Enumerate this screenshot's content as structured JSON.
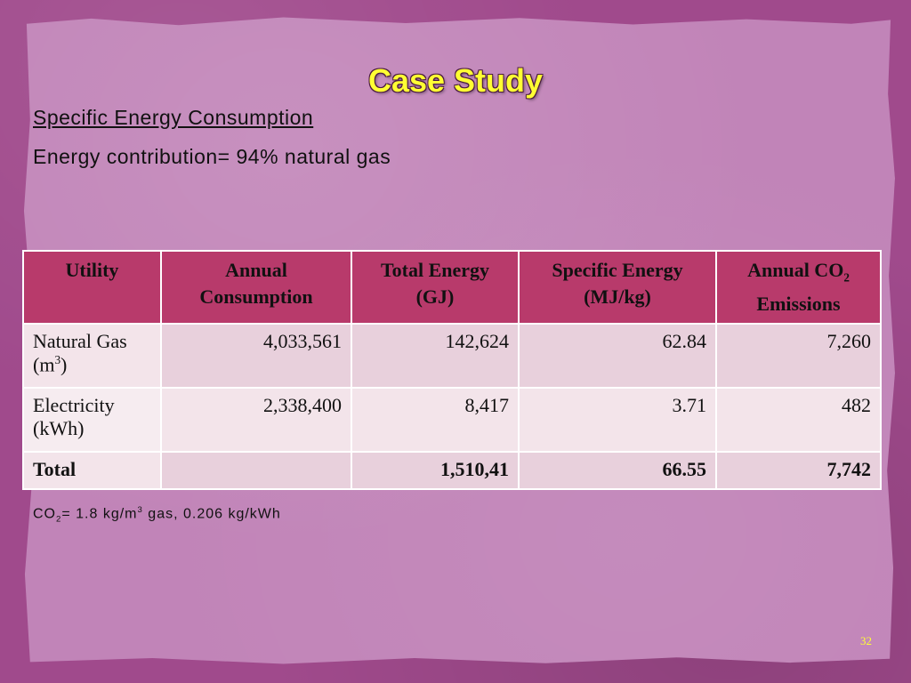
{
  "slide": {
    "title": "Case Study",
    "subheading": "Specific Energy Consumption",
    "body": "Energy contribution= 94% natural gas",
    "page_number": "32"
  },
  "table": {
    "headers": [
      {
        "text": "Utility"
      },
      {
        "text": "Annual Consumption"
      },
      {
        "text": "Total Energy (GJ)"
      },
      {
        "text": "Specific Energy (MJ/kg)"
      },
      {
        "text": "Annual CO",
        "sub": "2",
        "rest": " Emissions"
      }
    ],
    "rows": [
      {
        "utility": "Natural Gas (m",
        "utility_sup": "3",
        "utility_end": ")",
        "consumption": "4,033,561",
        "total_energy": "142,624",
        "specific_energy": "62.84",
        "co2": "7,260"
      },
      {
        "utility": "Electricity (kWh)",
        "consumption": "2,338,400",
        "total_energy": "8,417",
        "specific_energy": "3.71",
        "co2": "482"
      },
      {
        "utility": "Total",
        "consumption": "",
        "total_energy": "1,510,41",
        "specific_energy": "66.55",
        "co2": "7,742"
      }
    ]
  },
  "footnote": {
    "a": "CO",
    "a_sub": "2",
    "b": "= 1.8 kg/m",
    "b_sup": "3",
    "c": " gas, 0.206 kg/kWh"
  },
  "colors": {
    "title": "#ffff33",
    "header_bg": "#b83a6b",
    "frame": "#a04a8c",
    "paper": "#c184b8"
  }
}
